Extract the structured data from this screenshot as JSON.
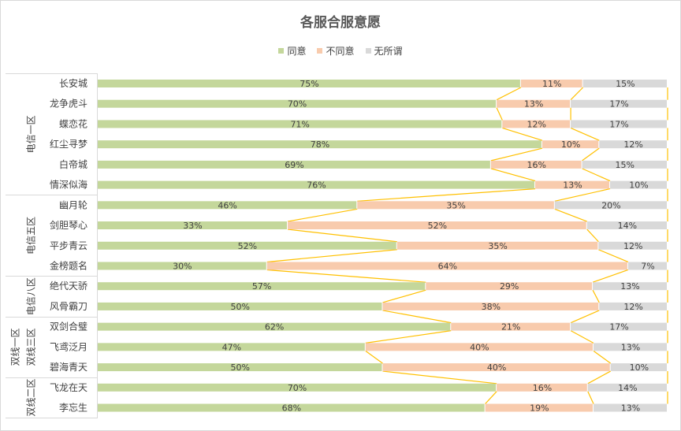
{
  "chart_data": {
    "type": "bar",
    "orientation": "horizontal",
    "stacked": "percent",
    "title": "各服合服意愿",
    "xlabel": "",
    "ylabel": "",
    "legend_position": "top",
    "grid": false,
    "series_lines": true,
    "groups": [
      {
        "labels": [
          "电信一区"
        ],
        "categories": [
          "长安城",
          "龙争虎斗",
          "蝶恋花",
          "红尘寻梦",
          "白帝城",
          "情深似海"
        ]
      },
      {
        "labels": [
          "电信五区"
        ],
        "categories": [
          "幽月轮",
          "剑胆琴心",
          "平步青云",
          "金榜题名"
        ]
      },
      {
        "labels": [
          "电信八区"
        ],
        "categories": [
          "绝代天骄",
          "风骨霸刀"
        ]
      },
      {
        "labels": [
          "双线一区",
          "双线三区"
        ],
        "categories": [
          "双剑合璧",
          "飞鸢泛月",
          "碧海青天"
        ]
      },
      {
        "labels": [
          "双线二区"
        ],
        "categories": [
          "飞龙在天",
          "李忘生"
        ]
      }
    ],
    "categories": [
      "长安城",
      "龙争虎斗",
      "蝶恋花",
      "红尘寻梦",
      "白帝城",
      "情深似海",
      "幽月轮",
      "剑胆琴心",
      "平步青云",
      "金榜题名",
      "绝代天骄",
      "风骨霸刀",
      "双剑合璧",
      "飞鸢泛月",
      "碧海青天",
      "飞龙在天",
      "李忘生"
    ],
    "series": [
      {
        "name": "同意",
        "color": "#c4d79b",
        "values": [
          75,
          70,
          71,
          78,
          69,
          76,
          46,
          33,
          52,
          30,
          57,
          50,
          62,
          47,
          50,
          70,
          68
        ]
      },
      {
        "name": "不同意",
        "color": "#f8cbad",
        "values": [
          11,
          13,
          12,
          10,
          16,
          13,
          35,
          52,
          35,
          64,
          29,
          38,
          21,
          40,
          40,
          16,
          19
        ]
      },
      {
        "name": "无所谓",
        "color": "#d9d9d9",
        "values": [
          15,
          17,
          17,
          12,
          15,
          10,
          20,
          14,
          12,
          7,
          13,
          12,
          17,
          13,
          10,
          14,
          13
        ]
      }
    ],
    "value_suffix": "%",
    "series_line_color": "#ffc000"
  }
}
